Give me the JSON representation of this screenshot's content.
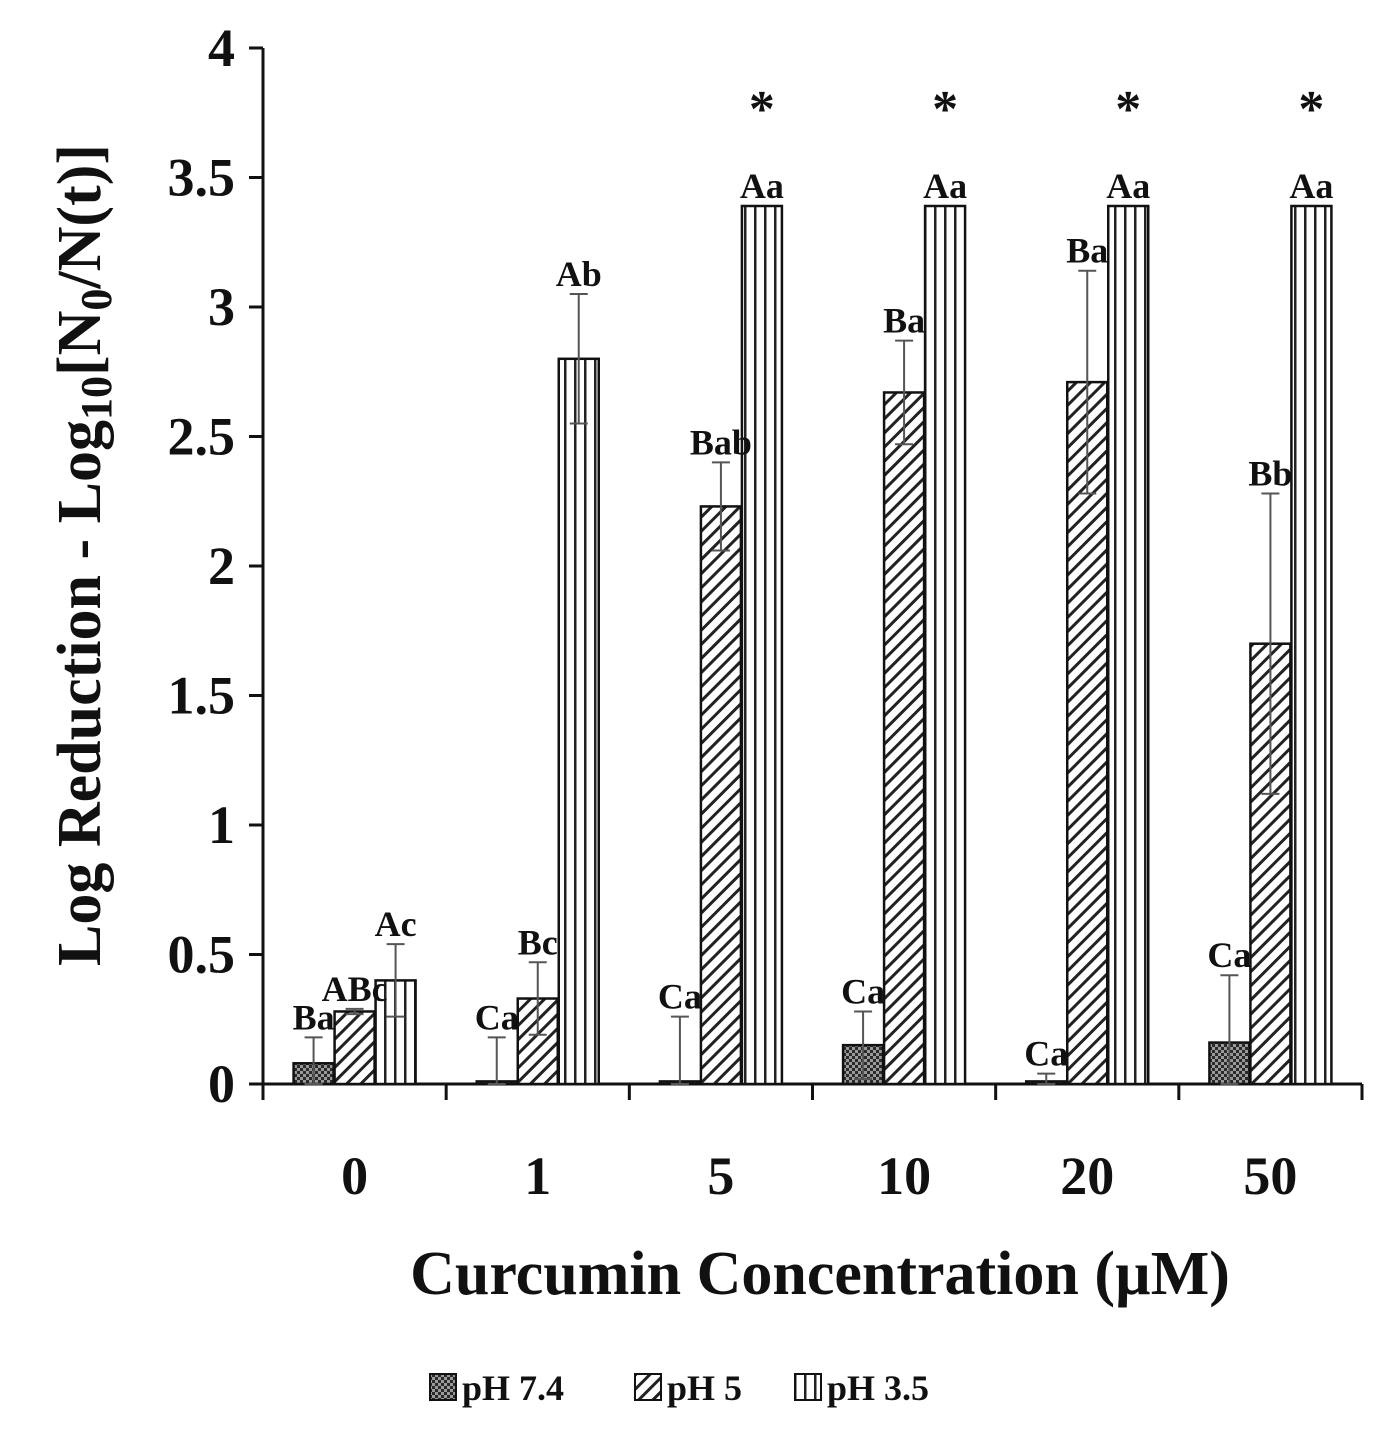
{
  "chart_data": {
    "type": "bar",
    "xlabel": "Curcumin Concentration (µM)",
    "ylabel_main": "Log Reduction - Log",
    "ylabel_sub": "10",
    "ylabel_rest1": "[N",
    "ylabel_sub2": "0",
    "ylabel_rest2": "/N(t)]",
    "categories": [
      "0",
      "1",
      "5",
      "10",
      "20",
      "50"
    ],
    "ylim": [
      0,
      4
    ],
    "yticks": [
      "0",
      "0.5",
      "1",
      "1.5",
      "2",
      "2.5",
      "3",
      "3.5",
      "4"
    ],
    "legend_position": "bottom",
    "series": [
      {
        "name": "pH 7.4",
        "pattern": "dots",
        "values": [
          0.08,
          0.01,
          0.01,
          0.15,
          0.01,
          0.16
        ],
        "errors": [
          0.1,
          0.17,
          0.25,
          0.13,
          0.03,
          0.26
        ],
        "labels": [
          "Ba",
          "Ca",
          "Ca",
          "Ca",
          "Ca",
          "Ca"
        ]
      },
      {
        "name": "pH 5",
        "pattern": "diagonal",
        "values": [
          0.28,
          0.33,
          2.23,
          2.67,
          2.71,
          1.7
        ],
        "errors": [
          0.01,
          0.14,
          0.17,
          0.2,
          0.43,
          0.58
        ],
        "labels": [
          "ABc",
          "Bc",
          "Bab",
          "Ba",
          "Ba",
          "Bb"
        ]
      },
      {
        "name": "pH 3.5",
        "pattern": "vertical",
        "values": [
          0.4,
          2.8,
          3.39,
          3.39,
          3.39,
          3.39
        ],
        "errors": [
          0.14,
          0.25,
          0,
          0,
          0,
          0
        ],
        "labels": [
          "Ac",
          "Ab",
          "Aa",
          "Aa",
          "Aa",
          "Aa"
        ],
        "stars": [
          "",
          "",
          "*",
          "*",
          "*",
          "*"
        ]
      }
    ]
  }
}
